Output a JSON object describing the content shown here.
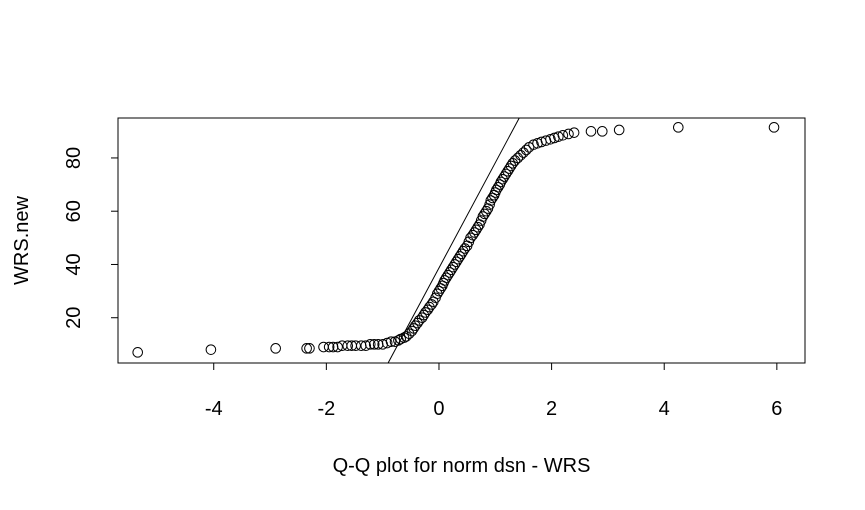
{
  "chart_data": {
    "type": "scatter",
    "title": "",
    "xlabel": "Q-Q plot for norm dsn - WRS",
    "ylabel": "WRS.new",
    "xlim": [
      -5.7,
      6.5
    ],
    "ylim": [
      3,
      95
    ],
    "x_ticks": [
      -4,
      -2,
      0,
      2,
      4,
      6
    ],
    "y_ticks": [
      20,
      40,
      60,
      80
    ],
    "grid": false,
    "legend": "none",
    "point_style": "open-circle",
    "reference_line": {
      "slope": 39.5,
      "intercept": 38.7
    },
    "points": [
      [
        -5.35,
        7
      ],
      [
        -4.05,
        8
      ],
      [
        -2.9,
        8.5
      ],
      [
        -2.35,
        8.5
      ],
      [
        -2.3,
        8.5
      ],
      [
        -2.05,
        9
      ],
      [
        -1.95,
        9
      ],
      [
        -1.88,
        9
      ],
      [
        -1.8,
        9
      ],
      [
        -1.72,
        9.5
      ],
      [
        -1.62,
        9.5
      ],
      [
        -1.55,
        9.5
      ],
      [
        -1.48,
        9.5
      ],
      [
        -1.38,
        9.5
      ],
      [
        -1.3,
        9.5
      ],
      [
        -1.22,
        10
      ],
      [
        -1.15,
        10
      ],
      [
        -1.08,
        10
      ],
      [
        -1.0,
        10
      ],
      [
        -0.92,
        10.5
      ],
      [
        -0.85,
        11
      ],
      [
        -0.78,
        11
      ],
      [
        -0.72,
        11.5
      ],
      [
        -0.68,
        12
      ],
      [
        -0.62,
        12.5
      ],
      [
        -0.58,
        13
      ],
      [
        -0.53,
        14
      ],
      [
        -0.48,
        15
      ],
      [
        -0.45,
        16
      ],
      [
        -0.42,
        17
      ],
      [
        -0.38,
        18
      ],
      [
        -0.35,
        19
      ],
      [
        -0.3,
        20
      ],
      [
        -0.27,
        21
      ],
      [
        -0.24,
        22
      ],
      [
        -0.2,
        23
      ],
      [
        -0.17,
        24
      ],
      [
        -0.13,
        25
      ],
      [
        -0.1,
        26
      ],
      [
        -0.06,
        27.5
      ],
      [
        -0.03,
        29
      ],
      [
        0.0,
        30
      ],
      [
        0.03,
        31
      ],
      [
        0.06,
        32
      ],
      [
        0.08,
        33
      ],
      [
        0.1,
        34
      ],
      [
        0.13,
        35
      ],
      [
        0.16,
        36
      ],
      [
        0.19,
        37
      ],
      [
        0.22,
        38
      ],
      [
        0.25,
        39
      ],
      [
        0.28,
        40
      ],
      [
        0.31,
        41
      ],
      [
        0.34,
        42
      ],
      [
        0.37,
        43
      ],
      [
        0.4,
        44
      ],
      [
        0.43,
        45
      ],
      [
        0.46,
        46
      ],
      [
        0.5,
        47
      ],
      [
        0.53,
        48.5
      ],
      [
        0.56,
        50
      ],
      [
        0.6,
        51
      ],
      [
        0.63,
        52
      ],
      [
        0.66,
        53
      ],
      [
        0.69,
        54
      ],
      [
        0.72,
        55
      ],
      [
        0.75,
        56.5
      ],
      [
        0.78,
        58
      ],
      [
        0.81,
        59
      ],
      [
        0.84,
        60
      ],
      [
        0.87,
        61
      ],
      [
        0.9,
        62.5
      ],
      [
        0.92,
        64
      ],
      [
        0.95,
        65
      ],
      [
        0.98,
        66
      ],
      [
        1.0,
        67
      ],
      [
        1.02,
        68
      ],
      [
        1.05,
        69
      ],
      [
        1.08,
        70
      ],
      [
        1.1,
        71
      ],
      [
        1.13,
        72
      ],
      [
        1.16,
        73
      ],
      [
        1.19,
        74
      ],
      [
        1.22,
        75
      ],
      [
        1.25,
        76
      ],
      [
        1.28,
        77
      ],
      [
        1.31,
        78
      ],
      [
        1.35,
        79
      ],
      [
        1.4,
        80
      ],
      [
        1.45,
        81
      ],
      [
        1.5,
        82
      ],
      [
        1.55,
        83
      ],
      [
        1.6,
        84
      ],
      [
        1.68,
        85
      ],
      [
        1.75,
        85.5
      ],
      [
        1.82,
        86
      ],
      [
        1.9,
        86.5
      ],
      [
        1.98,
        87
      ],
      [
        2.05,
        87.5
      ],
      [
        2.12,
        88
      ],
      [
        2.2,
        88.5
      ],
      [
        2.3,
        89
      ],
      [
        2.4,
        89.5
      ],
      [
        2.7,
        90
      ],
      [
        2.9,
        90
      ],
      [
        3.2,
        90.5
      ],
      [
        4.25,
        91.5
      ],
      [
        5.95,
        91.5
      ]
    ]
  }
}
